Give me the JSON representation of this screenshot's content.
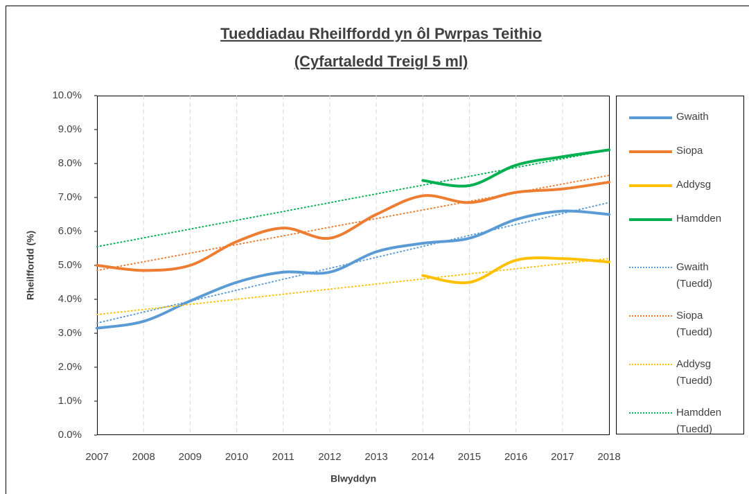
{
  "chart_data": {
    "type": "line",
    "title": [
      "Tueddiadau Rheilffordd yn ôl Pwrpas Teithio",
      "(Cyfartaledd Treigl 5 ml)"
    ],
    "xlabel": "Blwyddyn",
    "ylabel": "Rheilffordd (%)",
    "x": [
      2007,
      2008,
      2009,
      2010,
      2011,
      2012,
      2013,
      2014,
      2015,
      2016,
      2017,
      2018
    ],
    "xlim": [
      2007,
      2018
    ],
    "xticks": [
      2007,
      2008,
      2009,
      2010,
      2011,
      2012,
      2013,
      2014,
      2015,
      2016,
      2017,
      2018
    ],
    "ylim": [
      0,
      10
    ],
    "yticks": [
      {
        "value": 0,
        "label": "0.0%"
      },
      {
        "value": 1,
        "label": "1.0%"
      },
      {
        "value": 2,
        "label": "2.0%"
      },
      {
        "value": 3,
        "label": "3.0%"
      },
      {
        "value": 4,
        "label": "4.0%"
      },
      {
        "value": 5,
        "label": "5.0%"
      },
      {
        "value": 6,
        "label": "6.0%"
      },
      {
        "value": 7,
        "label": "7.0%"
      },
      {
        "value": 8,
        "label": "8.0%"
      },
      {
        "value": 9,
        "label": "9.0%"
      },
      {
        "value": 10,
        "label": "10.0%"
      }
    ],
    "xgrid": true,
    "legend": "right",
    "series": [
      {
        "name": "Gwaith",
        "color": "#5b9bd5",
        "values": [
          3.15,
          3.35,
          3.95,
          4.5,
          4.8,
          4.8,
          5.4,
          5.65,
          5.8,
          6.35,
          6.6,
          6.5
        ]
      },
      {
        "name": "Siopa",
        "color": "#ed7d31",
        "values": [
          5.0,
          4.85,
          5.0,
          5.7,
          6.1,
          5.8,
          6.5,
          7.05,
          6.85,
          7.15,
          7.25,
          7.45
        ]
      },
      {
        "name": "Addysg",
        "color": "#ffc000",
        "values": [
          null,
          null,
          null,
          null,
          null,
          null,
          null,
          4.7,
          4.5,
          5.15,
          5.2,
          5.1
        ]
      },
      {
        "name": "Hamdden",
        "color": "#00b050",
        "values": [
          null,
          null,
          null,
          null,
          null,
          null,
          null,
          7.5,
          7.35,
          7.95,
          8.2,
          8.4
        ]
      },
      {
        "name": "Gwaith (Tuedd)",
        "color": "#5b9bd5",
        "dotted": true,
        "x": [
          2007,
          2018
        ],
        "values": [
          3.3,
          6.85
        ]
      },
      {
        "name": "Siopa (Tuedd)",
        "color": "#ed7d31",
        "dotted": true,
        "x": [
          2007,
          2018
        ],
        "values": [
          4.85,
          7.65
        ]
      },
      {
        "name": "Addysg (Tuedd)",
        "color": "#ffc000",
        "dotted": true,
        "x": [
          2007,
          2018
        ],
        "values": [
          3.55,
          5.2
        ]
      },
      {
        "name": "Hamdden (Tuedd)",
        "color": "#00b050",
        "dotted": true,
        "x": [
          2007,
          2018
        ],
        "values": [
          5.55,
          8.4
        ]
      }
    ]
  }
}
